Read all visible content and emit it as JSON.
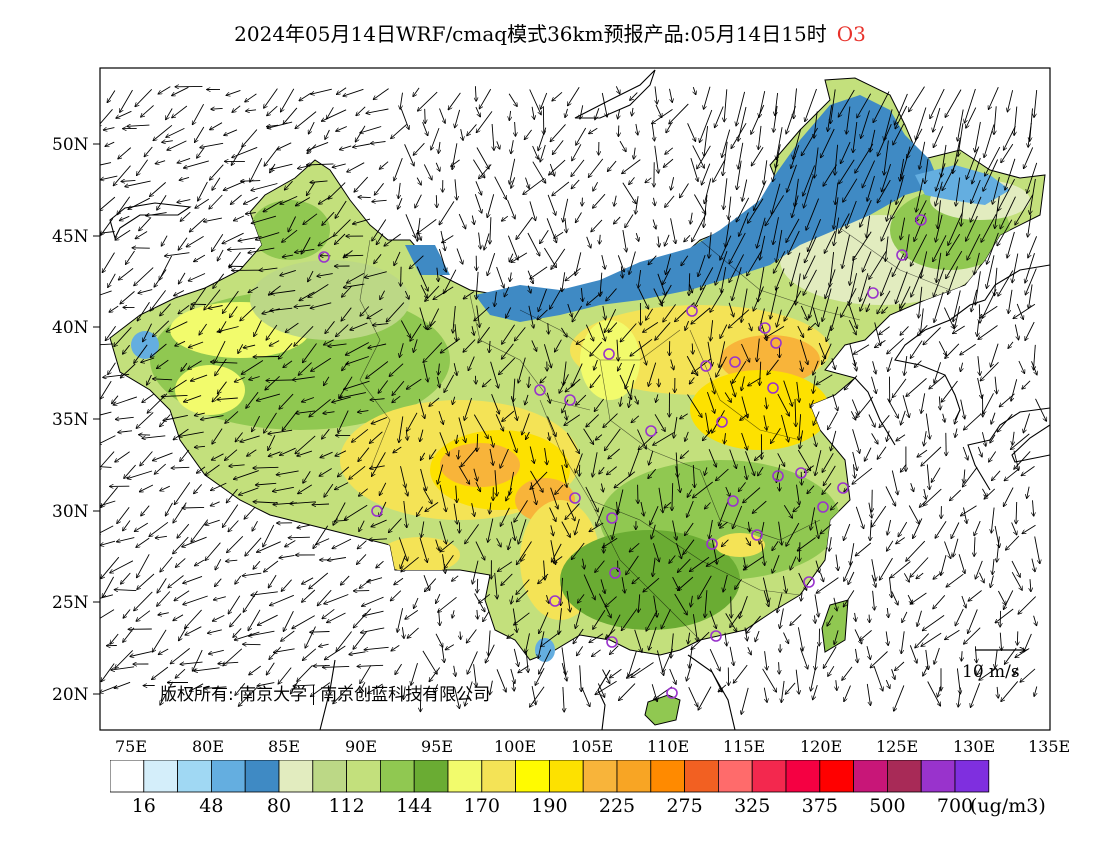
{
  "title": {
    "text": "2024年05月14日WRF/cmaq模式36km预报产品:05月14日15时",
    "pollutant": "O3"
  },
  "axes": {
    "lon_labels": [
      "75E",
      "80E",
      "85E",
      "90E",
      "95E",
      "100E",
      "105E",
      "110E",
      "115E",
      "120E",
      "125E",
      "130E",
      "135E"
    ],
    "lat_labels": [
      "50N",
      "45N",
      "40N",
      "35N",
      "30N",
      "25N",
      "20N"
    ]
  },
  "legend": {
    "wind_scale": "10 m/s",
    "colorbar": {
      "colors": [
        "#ffffff",
        "#d4eefa",
        "#a0d8f3",
        "#64aee0",
        "#3f8ac4",
        "#e2ecbf",
        "#bcd886",
        "#c3e07c",
        "#90c851",
        "#6aac33",
        "#f2fb6c",
        "#f4e356",
        "#fffb00",
        "#fde100",
        "#f8b43a",
        "#f8a524",
        "#ff8a00",
        "#f26022",
        "#ff6b6b",
        "#f3284e",
        "#f50042",
        "#ff0000",
        "#c81678",
        "#a82a57",
        "#9933cc",
        "#7f2fdf"
      ],
      "labels": [
        "16",
        "48",
        "80",
        "112",
        "144",
        "170",
        "190",
        "225",
        "275",
        "325",
        "375",
        "500",
        "700"
      ],
      "unit": "(ug/m3)"
    }
  },
  "copyright": {
    "prefix": "版权所有:",
    "org1": "南京大学",
    "org2": "南京创蓝科技有限公司"
  },
  "highlight_colors": {
    "mongolia_band": "#3f8ac4",
    "north_china_hotspot": "#f8b43a"
  }
}
